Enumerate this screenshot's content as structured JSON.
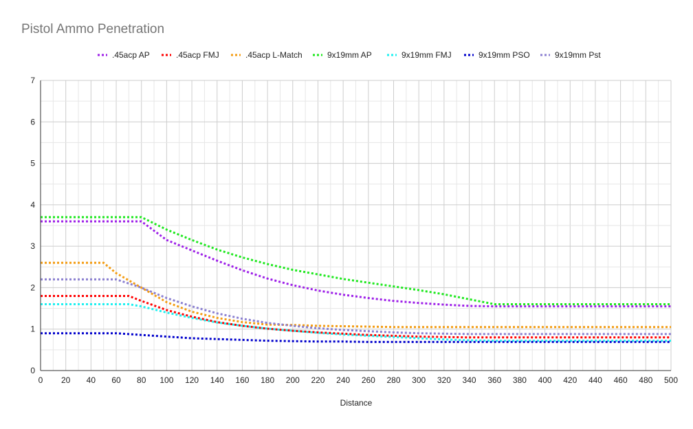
{
  "chart_data": {
    "type": "line",
    "title": "Pistol Ammo Penetration",
    "xlabel": "Distance",
    "ylabel": "",
    "xlim": [
      0,
      500
    ],
    "ylim": [
      0,
      7
    ],
    "xticks": [
      0,
      20,
      40,
      60,
      80,
      100,
      120,
      140,
      160,
      180,
      200,
      220,
      240,
      260,
      280,
      300,
      320,
      340,
      360,
      380,
      400,
      420,
      440,
      460,
      480,
      500
    ],
    "yticks": [
      0,
      1,
      2,
      3,
      4,
      5,
      6,
      7
    ],
    "grid": true,
    "legend_position": "top",
    "line_style": "dotted",
    "series": [
      {
        "name": ".45acp AP",
        "color": "#9d1ee8",
        "points": [
          [
            0,
            3.6
          ],
          [
            80,
            3.6
          ],
          [
            100,
            3.15
          ],
          [
            120,
            2.9
          ],
          [
            140,
            2.65
          ],
          [
            160,
            2.42
          ],
          [
            180,
            2.22
          ],
          [
            200,
            2.06
          ],
          [
            220,
            1.93
          ],
          [
            240,
            1.83
          ],
          [
            260,
            1.75
          ],
          [
            280,
            1.68
          ],
          [
            300,
            1.63
          ],
          [
            320,
            1.59
          ],
          [
            340,
            1.56
          ],
          [
            360,
            1.55
          ],
          [
            500,
            1.55
          ]
        ]
      },
      {
        "name": ".45acp FMJ",
        "color": "#ff0000",
        "points": [
          [
            0,
            1.8
          ],
          [
            70,
            1.8
          ],
          [
            80,
            1.68
          ],
          [
            100,
            1.46
          ],
          [
            120,
            1.3
          ],
          [
            140,
            1.17
          ],
          [
            160,
            1.08
          ],
          [
            180,
            1.01
          ],
          [
            200,
            0.96
          ],
          [
            220,
            0.92
          ],
          [
            240,
            0.89
          ],
          [
            260,
            0.86
          ],
          [
            280,
            0.84
          ],
          [
            300,
            0.82
          ],
          [
            320,
            0.81
          ],
          [
            340,
            0.8
          ],
          [
            500,
            0.8
          ]
        ]
      },
      {
        "name": ".45acp L-Match",
        "color": "#f39c12",
        "points": [
          [
            0,
            2.6
          ],
          [
            50,
            2.6
          ],
          [
            60,
            2.35
          ],
          [
            80,
            2.0
          ],
          [
            100,
            1.65
          ],
          [
            120,
            1.42
          ],
          [
            140,
            1.27
          ],
          [
            160,
            1.17
          ],
          [
            180,
            1.11
          ],
          [
            200,
            1.1
          ],
          [
            220,
            1.08
          ],
          [
            240,
            1.07
          ],
          [
            260,
            1.06
          ],
          [
            280,
            1.05
          ],
          [
            500,
            1.05
          ]
        ]
      },
      {
        "name": "9x19mm AP",
        "color": "#1ee81e",
        "points": [
          [
            0,
            3.7
          ],
          [
            80,
            3.7
          ],
          [
            100,
            3.4
          ],
          [
            120,
            3.15
          ],
          [
            140,
            2.92
          ],
          [
            160,
            2.73
          ],
          [
            180,
            2.57
          ],
          [
            200,
            2.43
          ],
          [
            220,
            2.32
          ],
          [
            240,
            2.21
          ],
          [
            260,
            2.12
          ],
          [
            280,
            2.03
          ],
          [
            300,
            1.94
          ],
          [
            320,
            1.84
          ],
          [
            340,
            1.72
          ],
          [
            360,
            1.6
          ],
          [
            500,
            1.6
          ]
        ]
      },
      {
        "name": "9x19mm FMJ",
        "color": "#1ef0f0",
        "points": [
          [
            0,
            1.6
          ],
          [
            70,
            1.6
          ],
          [
            80,
            1.55
          ],
          [
            100,
            1.4
          ],
          [
            120,
            1.27
          ],
          [
            140,
            1.16
          ],
          [
            160,
            1.08
          ],
          [
            180,
            1.01
          ],
          [
            200,
            0.96
          ],
          [
            220,
            0.91
          ],
          [
            240,
            0.87
          ],
          [
            260,
            0.84
          ],
          [
            280,
            0.81
          ],
          [
            300,
            0.78
          ],
          [
            320,
            0.75
          ],
          [
            340,
            0.73
          ],
          [
            360,
            0.72
          ],
          [
            500,
            0.72
          ]
        ]
      },
      {
        "name": "9x19mm PSO",
        "color": "#0000cc",
        "points": [
          [
            0,
            0.9
          ],
          [
            60,
            0.9
          ],
          [
            80,
            0.86
          ],
          [
            100,
            0.82
          ],
          [
            120,
            0.78
          ],
          [
            140,
            0.76
          ],
          [
            160,
            0.74
          ],
          [
            180,
            0.72
          ],
          [
            200,
            0.71
          ],
          [
            220,
            0.7
          ],
          [
            240,
            0.7
          ],
          [
            260,
            0.69
          ],
          [
            500,
            0.69
          ]
        ]
      },
      {
        "name": "9x19mm Pst",
        "color": "#8a7fd0",
        "points": [
          [
            0,
            2.2
          ],
          [
            60,
            2.2
          ],
          [
            80,
            2.0
          ],
          [
            100,
            1.75
          ],
          [
            120,
            1.55
          ],
          [
            140,
            1.38
          ],
          [
            160,
            1.25
          ],
          [
            180,
            1.15
          ],
          [
            200,
            1.08
          ],
          [
            220,
            1.02
          ],
          [
            240,
            0.98
          ],
          [
            260,
            0.95
          ],
          [
            280,
            0.92
          ],
          [
            300,
            0.9
          ],
          [
            320,
            0.89
          ],
          [
            340,
            0.88
          ],
          [
            500,
            0.88
          ]
        ]
      }
    ]
  }
}
